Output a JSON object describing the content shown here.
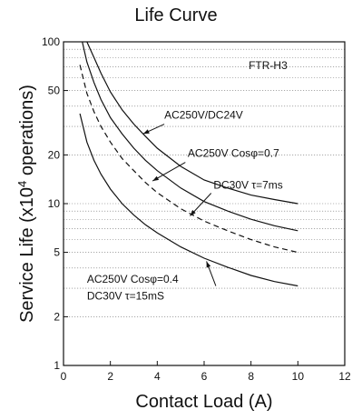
{
  "chart_data": {
    "type": "line",
    "title": "Life Curve",
    "xlabel": "Contact Load (A)",
    "ylabel_main": "Service Life (x10",
    "ylabel_sup": "4",
    "ylabel_tail": " operations)",
    "x_scale": "linear",
    "y_scale": "log",
    "xlim": [
      0,
      12
    ],
    "ylim": [
      1,
      100
    ],
    "x_ticks": [
      0,
      2,
      4,
      6,
      8,
      10,
      12
    ],
    "y_ticks": [
      1,
      2,
      5,
      10,
      20,
      50,
      100
    ],
    "grid": "log minor horizontal lines (dotted)",
    "series": [
      {
        "label": "AC250V/DC24V",
        "style": "solid",
        "x": [
          1.0,
          1.3,
          1.6,
          2.0,
          2.5,
          3.0,
          3.5,
          4.0,
          5.0,
          6.0,
          7.0,
          8.0,
          9.0,
          10.0
        ],
        "y": [
          100,
          80,
          64,
          49,
          38,
          31,
          26,
          22,
          17,
          14,
          12.5,
          11.3,
          10.6,
          10
        ]
      },
      {
        "label": "AC250V Cosφ=0.7",
        "style": "solid",
        "x": [
          0.8,
          1.0,
          1.3,
          1.6,
          2.0,
          2.5,
          3.0,
          3.5,
          4.0,
          5.0,
          6.0,
          7.0,
          8.0,
          9.0,
          10.0
        ],
        "y": [
          100,
          75,
          56,
          44,
          34,
          27,
          22,
          18.5,
          16,
          12.5,
          10.3,
          9.0,
          8.0,
          7.3,
          6.8
        ]
      },
      {
        "label": "DC30V τ=7ms",
        "style": "dashed",
        "x": [
          0.7,
          1.0,
          1.3,
          1.6,
          2.0,
          2.5,
          3.0,
          3.5,
          4.0,
          5.0,
          6.0,
          7.0,
          8.0,
          9.0,
          10.0
        ],
        "y": [
          72,
          48,
          37,
          30,
          24,
          19,
          16,
          13.5,
          11.7,
          9.3,
          7.8,
          6.8,
          6.0,
          5.4,
          5.0
        ]
      },
      {
        "label": "AC250V Cosφ=0.4 / DC30V τ=15mS",
        "style": "solid",
        "x": [
          0.7,
          1.0,
          1.3,
          1.6,
          2.0,
          2.5,
          3.0,
          3.5,
          4.0,
          5.0,
          6.0,
          7.0,
          8.0,
          9.0,
          10.0
        ],
        "y": [
          36,
          24,
          18.5,
          15.2,
          12.3,
          10.0,
          8.5,
          7.4,
          6.6,
          5.4,
          4.6,
          4.05,
          3.6,
          3.3,
          3.1
        ]
      }
    ],
    "annotations": {
      "model": "FTR-H3",
      "label_a": "AC250V/DC24V",
      "label_b": "AC250V Cosφ=0.7",
      "label_c": "DC30V τ=7ms",
      "label_d_line1": "AC250V Cosφ=0.4",
      "label_d_line2": "DC30V τ=15mS"
    }
  }
}
